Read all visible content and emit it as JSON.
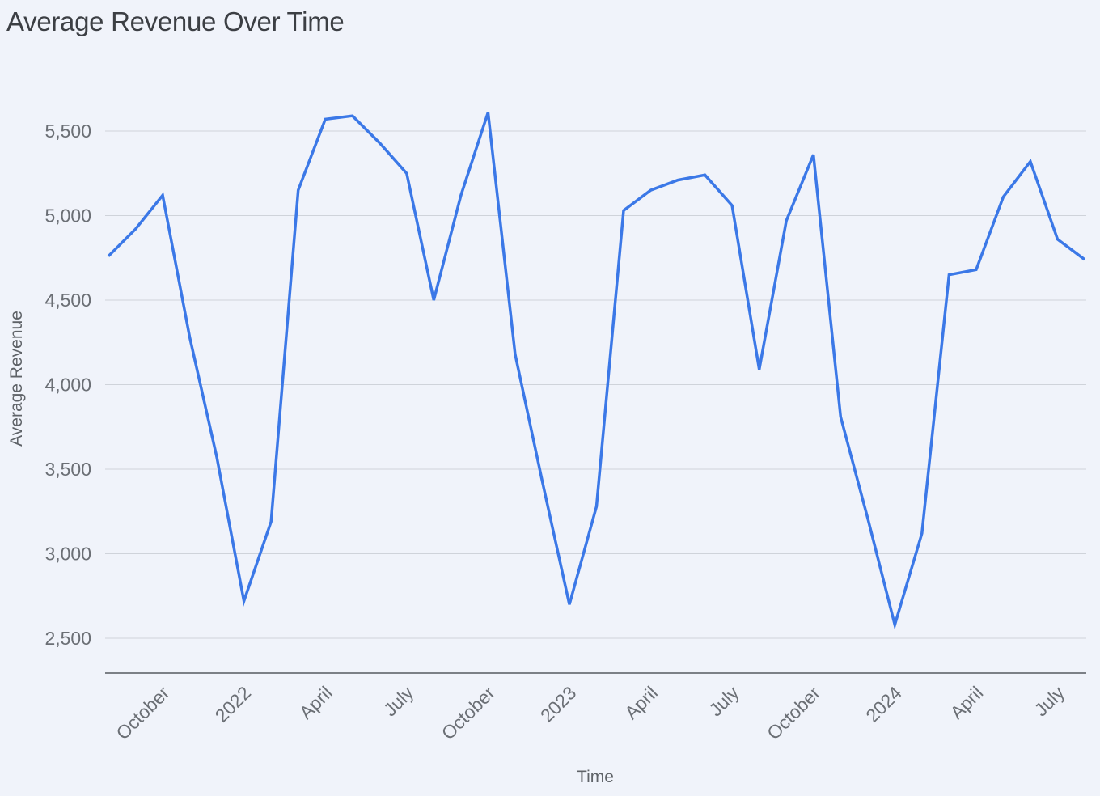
{
  "chart_data": {
    "type": "line",
    "title": "Average Revenue Over Time",
    "xlabel": "Time",
    "ylabel": "Average Revenue",
    "ylim": [
      2300,
      5800
    ],
    "y_ticks": [
      {
        "value": 2500,
        "label": "2,500"
      },
      {
        "value": 3000,
        "label": "3,000"
      },
      {
        "value": 3500,
        "label": "3,500"
      },
      {
        "value": 4000,
        "label": "4,000"
      },
      {
        "value": 4500,
        "label": "4,500"
      },
      {
        "value": 5000,
        "label": "5,000"
      },
      {
        "value": 5500,
        "label": "5,500"
      }
    ],
    "x_range": [
      "2021-08",
      "2024-08"
    ],
    "x_ticks": [
      {
        "date": "2021-10",
        "label": "October"
      },
      {
        "date": "2022-01",
        "label": "2022"
      },
      {
        "date": "2022-04",
        "label": "April"
      },
      {
        "date": "2022-07",
        "label": "July"
      },
      {
        "date": "2022-10",
        "label": "October"
      },
      {
        "date": "2023-01",
        "label": "2023"
      },
      {
        "date": "2023-04",
        "label": "April"
      },
      {
        "date": "2023-07",
        "label": "July"
      },
      {
        "date": "2023-10",
        "label": "October"
      },
      {
        "date": "2024-01",
        "label": "2024"
      },
      {
        "date": "2024-04",
        "label": "April"
      },
      {
        "date": "2024-07",
        "label": "July"
      }
    ],
    "series": [
      {
        "name": "Average Revenue",
        "color": "#3b78e7",
        "points": [
          {
            "x": "2021-08",
            "y": 4760
          },
          {
            "x": "2021-09",
            "y": 4920
          },
          {
            "x": "2021-10",
            "y": 5120
          },
          {
            "x": "2021-11",
            "y": 4280
          },
          {
            "x": "2021-12",
            "y": 3570
          },
          {
            "x": "2022-01",
            "y": 2720
          },
          {
            "x": "2022-02",
            "y": 3190
          },
          {
            "x": "2022-03",
            "y": 5150
          },
          {
            "x": "2022-04",
            "y": 5570
          },
          {
            "x": "2022-05",
            "y": 5590
          },
          {
            "x": "2022-06",
            "y": 5430
          },
          {
            "x": "2022-07",
            "y": 5250
          },
          {
            "x": "2022-08",
            "y": 4500
          },
          {
            "x": "2022-09",
            "y": 5120
          },
          {
            "x": "2022-10",
            "y": 5610
          },
          {
            "x": "2022-11",
            "y": 4180
          },
          {
            "x": "2022-12",
            "y": 3430
          },
          {
            "x": "2023-01",
            "y": 2700
          },
          {
            "x": "2023-02",
            "y": 3280
          },
          {
            "x": "2023-03",
            "y": 5030
          },
          {
            "x": "2023-04",
            "y": 5150
          },
          {
            "x": "2023-05",
            "y": 5210
          },
          {
            "x": "2023-06",
            "y": 5240
          },
          {
            "x": "2023-07",
            "y": 5060
          },
          {
            "x": "2023-08",
            "y": 4090
          },
          {
            "x": "2023-09",
            "y": 4970
          },
          {
            "x": "2023-10",
            "y": 5360
          },
          {
            "x": "2023-11",
            "y": 3810
          },
          {
            "x": "2023-12",
            "y": 3210
          },
          {
            "x": "2024-01",
            "y": 2580
          },
          {
            "x": "2024-02",
            "y": 3120
          },
          {
            "x": "2024-03",
            "y": 4650
          },
          {
            "x": "2024-04",
            "y": 4680
          },
          {
            "x": "2024-05",
            "y": 5110
          },
          {
            "x": "2024-06",
            "y": 5320
          },
          {
            "x": "2024-07",
            "y": 4860
          },
          {
            "x": "2024-08",
            "y": 4740
          }
        ]
      }
    ],
    "grid": true
  }
}
